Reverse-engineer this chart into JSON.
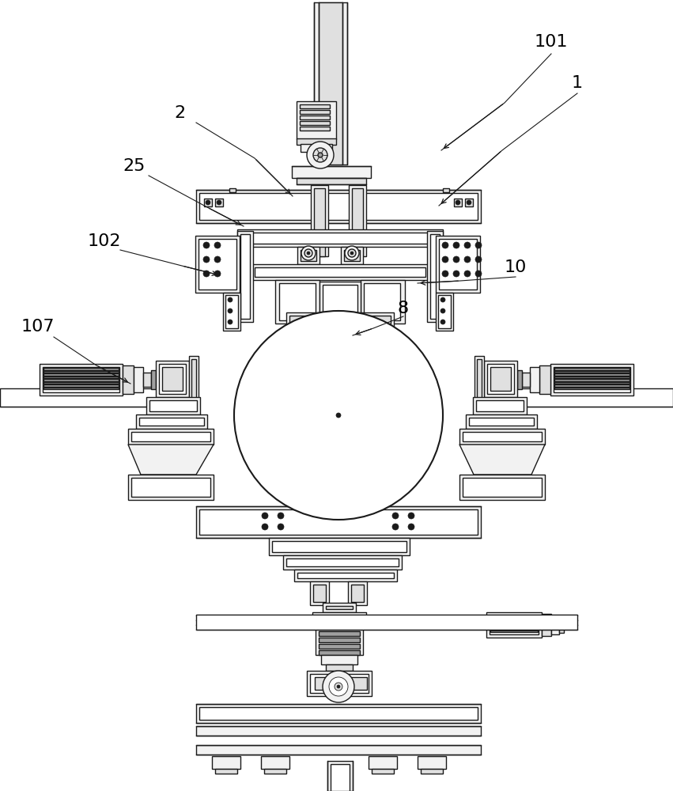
{
  "bg_color": "#ffffff",
  "lc": "#1a1a1a",
  "fc_light": "#f2f2f2",
  "fc_white": "#ffffff",
  "fc_mid": "#e0e0e0",
  "fc_dark": "#c0c0c0",
  "fc_darker": "#a0a0a0",
  "lw_main": 1.0,
  "lw_thin": 0.6,
  "lw_thick": 1.5,
  "label_fontsize": 16
}
